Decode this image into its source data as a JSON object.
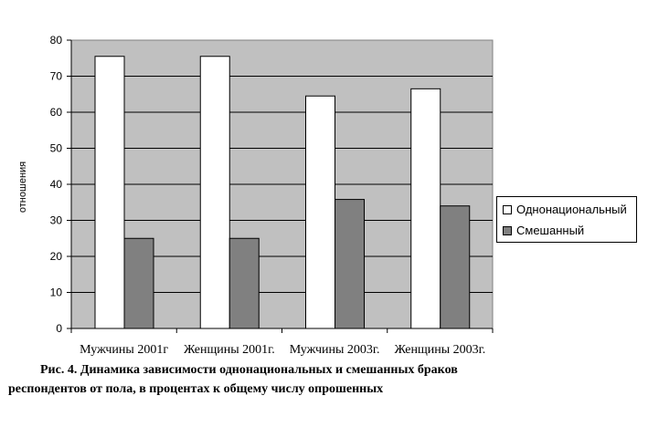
{
  "chart_data": {
    "type": "bar",
    "categories": [
      "Мужчины 2001г",
      "Женщины 2001г.",
      "Мужчины 2003г.",
      "Женщины 2003г."
    ],
    "series": [
      {
        "name": "Однонациональный",
        "values": [
          75.5,
          75.5,
          64.5,
          66.5
        ],
        "color": "#ffffff"
      },
      {
        "name": "Смешанный",
        "values": [
          25,
          25,
          35.8,
          34
        ],
        "color": "#808080"
      }
    ],
    "ylim": [
      0,
      80
    ],
    "yticks": [
      "0",
      "10",
      "20",
      "30",
      "40",
      "50",
      "60",
      "70",
      "80"
    ],
    "ylabel": "отношения",
    "grid": true,
    "plot_background": "#c0c0c0",
    "legend_position": "right"
  },
  "caption": {
    "line1": "Рис. 4. Динамика зависимости однонациональных и смешанных браков",
    "line2": "респондентов от пола, в процентах к общему числу опрошенных"
  }
}
